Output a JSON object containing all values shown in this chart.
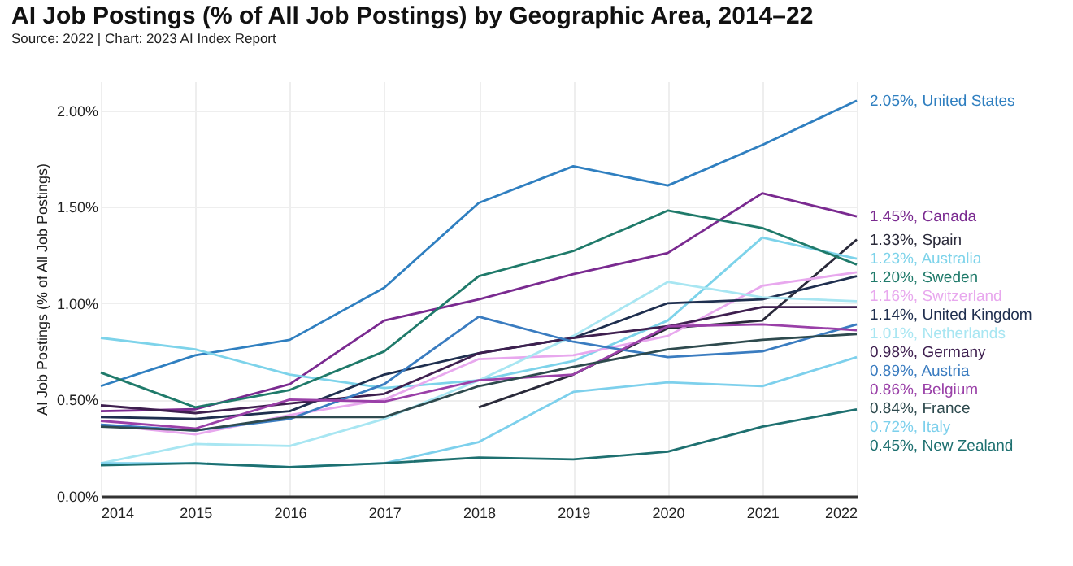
{
  "chart_data": {
    "type": "line",
    "title": "AI Job Postings (% of All Job Postings) by Geographic Area, 2014–22",
    "subtitle": "Source: 2022 | Chart: 2023 AI Index Report",
    "ylabel": "AI Job Postings (% of All Job Postings)",
    "x": [
      2014,
      2015,
      2016,
      2017,
      2018,
      2019,
      2020,
      2021,
      2022
    ],
    "xlim": [
      2014,
      2022
    ],
    "xticks": [
      2014,
      2015,
      2016,
      2017,
      2018,
      2019,
      2020,
      2021,
      2022
    ],
    "ylim": [
      0,
      2.15
    ],
    "yticks": [
      {
        "value": 0,
        "label": "0.00%"
      },
      {
        "value": 0.5,
        "label": "0.50%"
      },
      {
        "value": 1,
        "label": "1.00%"
      },
      {
        "value": 1.5,
        "label": "1.50%"
      },
      {
        "value": 2,
        "label": "2.00%"
      }
    ],
    "grid": true,
    "line_style": "solid",
    "marker": "none",
    "legend": false,
    "series": [
      {
        "name": "United States",
        "color": "#2f7fc0",
        "values": [
          0.57,
          0.73,
          0.81,
          1.08,
          1.52,
          1.71,
          1.61,
          1.82,
          2.05
        ],
        "value_labels": [
          null,
          null,
          null,
          null,
          null,
          null,
          null,
          null,
          "2.05%,"
        ]
      },
      {
        "name": "Canada",
        "color": "#7a2a90",
        "values": [
          0.44,
          0.45,
          0.58,
          0.91,
          1.02,
          1.15,
          1.26,
          1.57,
          1.45
        ],
        "value_labels": [
          null,
          null,
          null,
          null,
          null,
          null,
          null,
          null,
          "1.45%,"
        ]
      },
      {
        "name": "Spain",
        "color": "#2a2a3a",
        "values": [
          null,
          null,
          null,
          null,
          0.46,
          0.63,
          0.87,
          0.91,
          1.33
        ],
        "value_labels": [
          null,
          null,
          null,
          null,
          null,
          null,
          null,
          null,
          "1.33%,"
        ]
      },
      {
        "name": "Australia",
        "color": "#7dd3ea",
        "values": [
          0.82,
          0.76,
          0.63,
          0.56,
          0.6,
          0.7,
          0.91,
          1.34,
          1.23
        ],
        "value_labels": [
          null,
          null,
          null,
          null,
          null,
          null,
          null,
          null,
          "1.23%,"
        ]
      },
      {
        "name": "Sweden",
        "color": "#1f7a6a",
        "values": [
          0.64,
          0.46,
          0.55,
          0.75,
          1.14,
          1.27,
          1.48,
          1.39,
          1.2
        ],
        "value_labels": [
          null,
          null,
          null,
          null,
          null,
          null,
          null,
          null,
          "1.20%,"
        ]
      },
      {
        "name": "Switzerland",
        "color": "#e8a8ee",
        "values": [
          0.37,
          0.32,
          0.42,
          0.5,
          0.71,
          0.73,
          0.83,
          1.09,
          1.16
        ],
        "value_labels": [
          null,
          null,
          null,
          null,
          null,
          null,
          null,
          null,
          "1.16%,"
        ]
      },
      {
        "name": "United Kingdom",
        "color": "#1f2f4f",
        "values": [
          0.41,
          0.4,
          0.44,
          0.63,
          0.74,
          0.82,
          1.0,
          1.02,
          1.14
        ],
        "value_labels": [
          null,
          null,
          null,
          null,
          null,
          null,
          null,
          null,
          "1.14%,"
        ]
      },
      {
        "name": "Netherlands",
        "color": "#a8e6f2",
        "values": [
          0.17,
          0.27,
          0.26,
          0.4,
          0.6,
          0.83,
          1.11,
          1.03,
          1.01
        ],
        "value_labels": [
          null,
          null,
          null,
          null,
          null,
          null,
          null,
          null,
          "1.01%,"
        ]
      },
      {
        "name": "Germany",
        "color": "#3e1f4f",
        "values": [
          0.47,
          0.43,
          0.48,
          0.53,
          0.74,
          0.82,
          0.88,
          0.98,
          0.98
        ],
        "value_labels": [
          null,
          null,
          null,
          null,
          null,
          null,
          null,
          null,
          "0.98%,"
        ]
      },
      {
        "name": "Austria",
        "color": "#3a7cc0",
        "values": [
          0.37,
          0.34,
          0.4,
          0.58,
          0.93,
          0.8,
          0.72,
          0.75,
          0.89
        ],
        "value_labels": [
          null,
          null,
          null,
          null,
          null,
          null,
          null,
          null,
          "0.89%,"
        ]
      },
      {
        "name": "Belgium",
        "color": "#9a40a8",
        "values": [
          0.39,
          0.35,
          0.5,
          0.49,
          0.6,
          0.63,
          0.88,
          0.89,
          0.86
        ],
        "value_labels": [
          null,
          null,
          null,
          null,
          null,
          null,
          null,
          null,
          "0.86%,"
        ]
      },
      {
        "name": "France",
        "color": "#2e4a4e",
        "values": [
          0.36,
          0.34,
          0.41,
          0.41,
          0.57,
          0.67,
          0.76,
          0.81,
          0.84
        ],
        "value_labels": [
          null,
          null,
          null,
          null,
          null,
          null,
          null,
          null,
          "0.84%,"
        ]
      },
      {
        "name": "Italy",
        "color": "#7dd0ec",
        "values": [
          0.17,
          0.17,
          0.15,
          0.17,
          0.28,
          0.54,
          0.59,
          0.57,
          0.72
        ],
        "value_labels": [
          null,
          null,
          null,
          null,
          null,
          null,
          null,
          null,
          "0.72%,"
        ]
      },
      {
        "name": "New Zealand",
        "color": "#1e7070",
        "values": [
          0.16,
          0.17,
          0.15,
          0.17,
          0.2,
          0.19,
          0.23,
          0.36,
          0.45
        ],
        "value_labels": [
          null,
          null,
          null,
          null,
          null,
          null,
          null,
          null,
          "0.45%,"
        ]
      }
    ]
  }
}
